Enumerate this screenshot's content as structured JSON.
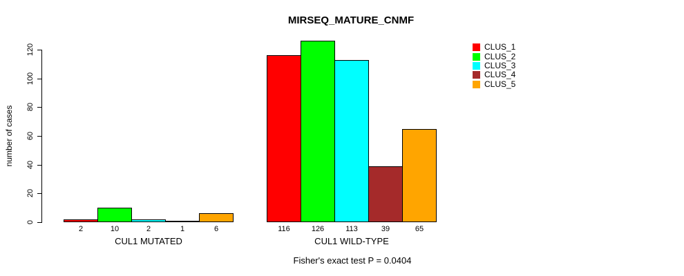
{
  "title": "MIRSEQ_MATURE_CNMF",
  "annotation": "Fisher's exact test P = 0.0404",
  "legend": {
    "items": [
      {
        "label": "CLUS_1",
        "color": "#ff0000"
      },
      {
        "label": "CLUS_2",
        "color": "#00ff00"
      },
      {
        "label": "CLUS_3",
        "color": "#00ffff"
      },
      {
        "label": "CLUS_4",
        "color": "#a52a2a"
      },
      {
        "label": "CLUS_5",
        "color": "#ffa500"
      }
    ]
  },
  "chart_data": {
    "type": "bar",
    "title": "MIRSEQ_MATURE_CNMF",
    "xlabel": "",
    "ylabel": "number of cases",
    "ylim": [
      0,
      130
    ],
    "yticks": [
      0,
      20,
      40,
      60,
      80,
      100,
      120
    ],
    "grid": false,
    "legend_position": "top-right",
    "series": [
      "CLUS_1",
      "CLUS_2",
      "CLUS_3",
      "CLUS_4",
      "CLUS_5"
    ],
    "series_colors": [
      "#ff0000",
      "#00ff00",
      "#00ffff",
      "#a52a2a",
      "#ffa500"
    ],
    "groups": [
      {
        "label": "CUL1 MUTATED",
        "values": [
          2,
          10,
          2,
          1,
          6
        ]
      },
      {
        "label": "CUL1 WILD-TYPE",
        "values": [
          116,
          126,
          113,
          39,
          65
        ]
      }
    ],
    "bar_value_labels_shown": true,
    "annotation": "Fisher's exact test P = 0.0404"
  }
}
